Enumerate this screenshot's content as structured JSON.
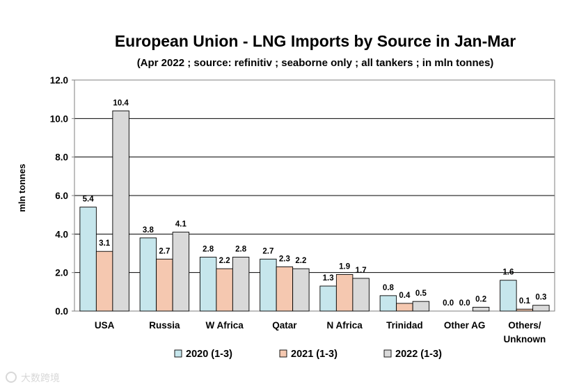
{
  "chart_data": {
    "type": "bar",
    "title": "European Union - LNG Imports by Source in Jan-Mar",
    "subtitle": "(Apr 2022 ; source: refinitiv ; seaborne only ; all tankers ; in mln tonnes)",
    "ylabel": "mln tonnes",
    "xlabel": "",
    "ylim": [
      0,
      12
    ],
    "yticks": [
      "0.0",
      "2.0",
      "4.0",
      "6.0",
      "8.0",
      "10.0",
      "12.0"
    ],
    "categories": [
      "USA",
      "Russia",
      "W Africa",
      "Qatar",
      "N Africa",
      "Trinidad",
      "Other AG",
      [
        "Others/",
        "Unknown"
      ]
    ],
    "series": [
      {
        "name": "2020 (1-3)",
        "color": "#c6e6ec",
        "values": [
          5.4,
          3.8,
          2.8,
          2.7,
          1.3,
          0.8,
          0.0,
          1.6
        ],
        "labels": [
          "5.4",
          "3.8",
          "2.8",
          "2.7",
          "1.3",
          "0.8",
          "0.0",
          "1.6"
        ]
      },
      {
        "name": "2021 (1-3)",
        "color": "#f5c8b0",
        "values": [
          3.1,
          2.7,
          2.2,
          2.3,
          1.9,
          0.4,
          0.0,
          0.1
        ],
        "labels": [
          "3.1",
          "2.7",
          "2.2",
          "2.3",
          "1.9",
          "0.4",
          "0.0",
          "0.1"
        ]
      },
      {
        "name": "2022 (1-3)",
        "color": "#d9d9d9",
        "values": [
          10.4,
          4.1,
          2.8,
          2.2,
          1.7,
          0.5,
          0.2,
          0.3
        ],
        "labels": [
          "10.4",
          "4.1",
          "2.8",
          "2.2",
          "1.7",
          "0.5",
          "0.2",
          "0.3"
        ]
      }
    ],
    "grid": true,
    "legend": "bottom"
  },
  "watermark": "大数跨境"
}
